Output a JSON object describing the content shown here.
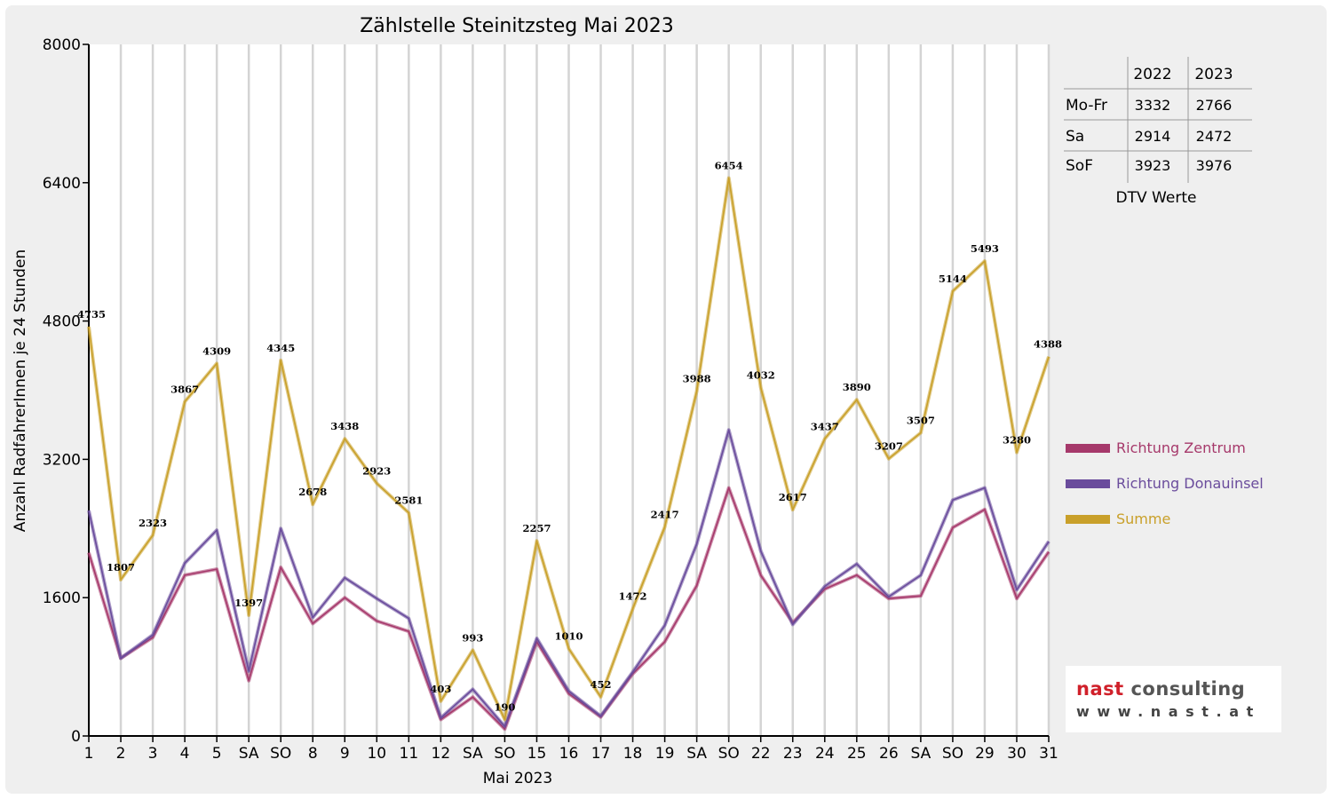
{
  "chart_data": {
    "type": "line",
    "title": "Zählstelle Steinitzsteg Mai 2023",
    "xlabel": "Mai 2023",
    "ylabel": "Anzahl RadfahrerInnen je 24 Stunden",
    "ylim": [
      0,
      8000
    ],
    "yticks": [
      0,
      1600,
      3200,
      4800,
      6400,
      8000
    ],
    "grid": "vertical",
    "legend_position": "right",
    "categories": [
      "1",
      "2",
      "3",
      "4",
      "5",
      "SA",
      "SO",
      "8",
      "9",
      "10",
      "11",
      "12",
      "SA",
      "SO",
      "15",
      "16",
      "17",
      "18",
      "19",
      "SA",
      "SO",
      "22",
      "23",
      "24",
      "25",
      "26",
      "SA",
      "SO",
      "29",
      "30",
      "31"
    ],
    "red_categories": [
      0,
      6,
      13,
      17,
      20,
      27,
      28
    ],
    "series": [
      {
        "name": "Richtung Zentrum",
        "color": "#a6396b",
        "values": [
          2120,
          900,
          1140,
          1860,
          1930,
          640,
          1950,
          1300,
          1600,
          1330,
          1210,
          190,
          450,
          80,
          1090,
          490,
          220,
          720,
          1090,
          1740,
          2870,
          1860,
          1310,
          1700,
          1860,
          1590,
          1620,
          2410,
          2620,
          1590,
          2130
        ]
      },
      {
        "name": "Richtung Donauinsel",
        "color": "#6a4c9c",
        "values": [
          2610,
          900,
          1170,
          2000,
          2380,
          750,
          2400,
          1370,
          1830,
          1590,
          1360,
          210,
          540,
          110,
          1130,
          520,
          230,
          740,
          1280,
          2220,
          3540,
          2140,
          1290,
          1730,
          1990,
          1610,
          1860,
          2730,
          2870,
          1690,
          2250
        ]
      },
      {
        "name": "Summe",
        "color": "#c9a02a",
        "values": [
          4735,
          1807,
          2323,
          3867,
          4309,
          1397,
          4345,
          2678,
          3438,
          2923,
          2581,
          403,
          993,
          190,
          2257,
          1010,
          452,
          1472,
          2417,
          3988,
          6454,
          4032,
          2617,
          3437,
          3890,
          3207,
          3507,
          5144,
          5493,
          3280,
          4388
        ]
      }
    ],
    "data_labels": [
      "4735",
      "1807",
      "2323",
      "3867",
      "4309",
      "1397",
      "4345",
      "2678",
      "3438",
      "2923",
      "2581",
      "403",
      "993",
      "190",
      "2257",
      "1010",
      "452",
      "1472",
      "2417",
      "3988",
      "6454",
      "4032",
      "2617",
      "3437",
      "3890",
      "3207",
      "3507",
      "5144",
      "5493",
      "3280",
      "4388"
    ]
  },
  "dtv_table": {
    "headers": [
      "",
      "2022",
      "2023"
    ],
    "rows": [
      {
        "label": "Mo-Fr",
        "v2022": "3332",
        "v2023": "2766"
      },
      {
        "label": "Sa",
        "v2022": "2914",
        "v2023": "2472"
      },
      {
        "label": "SoF",
        "v2022": "3923",
        "v2023": "3976"
      }
    ],
    "caption": "DTV Werte"
  },
  "logo": {
    "line1_accent": "nast",
    "line1_rest": " consulting",
    "line2": "www.nast.at"
  }
}
